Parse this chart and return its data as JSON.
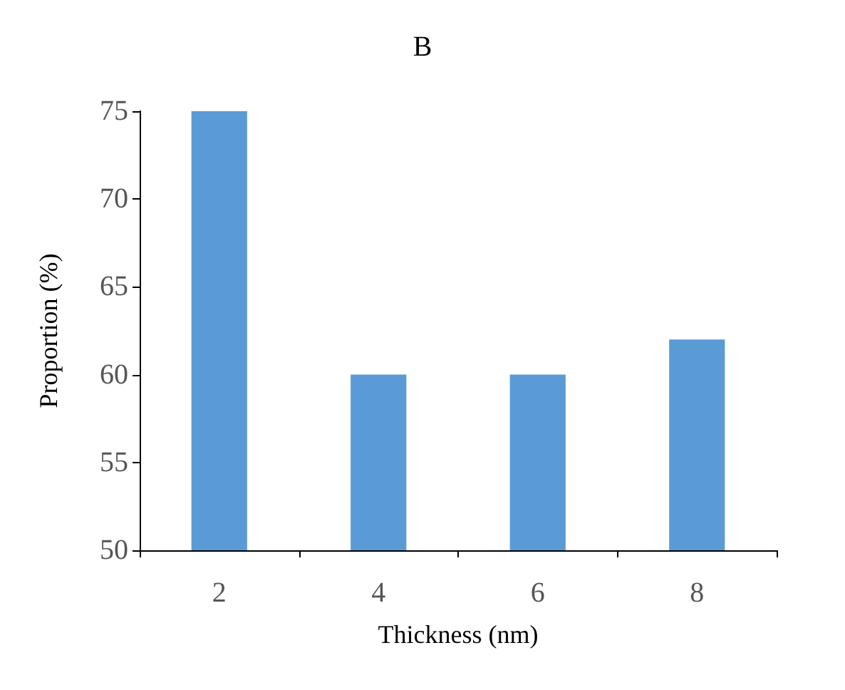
{
  "chart_data": {
    "type": "bar",
    "title": "B",
    "xlabel": "Thickness (nm)",
    "ylabel": "Proportion (%)",
    "categories": [
      "2",
      "4",
      "6",
      "8"
    ],
    "values": [
      75,
      60,
      60,
      62
    ],
    "color": "#5b9bd5",
    "ylim": [
      50,
      75
    ],
    "yticks": [
      50,
      55,
      60,
      65,
      70,
      75
    ],
    "grid": false
  }
}
